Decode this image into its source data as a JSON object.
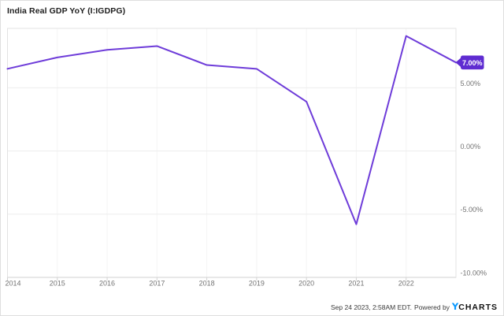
{
  "widget": {
    "title": "India Real GDP YoY (I:IGDPG)"
  },
  "badge": {
    "label": "7.00%"
  },
  "footer": {
    "timestamp": "Sep 24 2023, 2:58AM EDT.",
    "powered_by": "Powered by",
    "brand": {
      "y": "Y",
      "charts": "CHARTS"
    }
  },
  "colors": {
    "line": "#6E3CD9",
    "badge_bg": "#5F2CD1",
    "badge_text": "#FFFFFF",
    "brand_blue": "#0496FF",
    "axis_label": "#737373",
    "grid_h": "#EDEDED",
    "grid_v": "#F4F4F4",
    "plot_border": "#E3E3E3",
    "axis_bottom": "#D2D2D2",
    "title_text": "#202020",
    "footer_text": "#3A3A3A"
  },
  "chart_data": {
    "type": "line",
    "title": "India Real GDP YoY (I:IGDPG)",
    "series": [
      {
        "name": "India Real GDP YoY",
        "x": [
          2014,
          2015,
          2016,
          2017,
          2018,
          2019,
          2020,
          2021,
          2022,
          2023
        ],
        "values": [
          6.5,
          7.4,
          8.0,
          8.3,
          6.8,
          6.5,
          3.9,
          -5.8,
          9.1,
          7.0
        ]
      }
    ],
    "x_ticks": [
      {
        "value": 2014,
        "label": "2014"
      },
      {
        "value": 2015,
        "label": "2015"
      },
      {
        "value": 2016,
        "label": "2016"
      },
      {
        "value": 2017,
        "label": "2017"
      },
      {
        "value": 2018,
        "label": "2018"
      },
      {
        "value": 2019,
        "label": "2019"
      },
      {
        "value": 2020,
        "label": "2020"
      },
      {
        "value": 2021,
        "label": "2021"
      },
      {
        "value": 2022,
        "label": "2022"
      }
    ],
    "y_ticks": [
      {
        "value": 5,
        "label": "5.00%"
      },
      {
        "value": 0,
        "label": "0.00%"
      },
      {
        "value": -5,
        "label": "-5.00%"
      },
      {
        "value": -10,
        "label": "-10.00%"
      }
    ],
    "xlim": [
      2014,
      2023
    ],
    "ylim": [
      -10,
      9.7
    ],
    "grid": true,
    "legend": false,
    "latest_value": 7.0,
    "latest_value_label": "7.00%"
  }
}
